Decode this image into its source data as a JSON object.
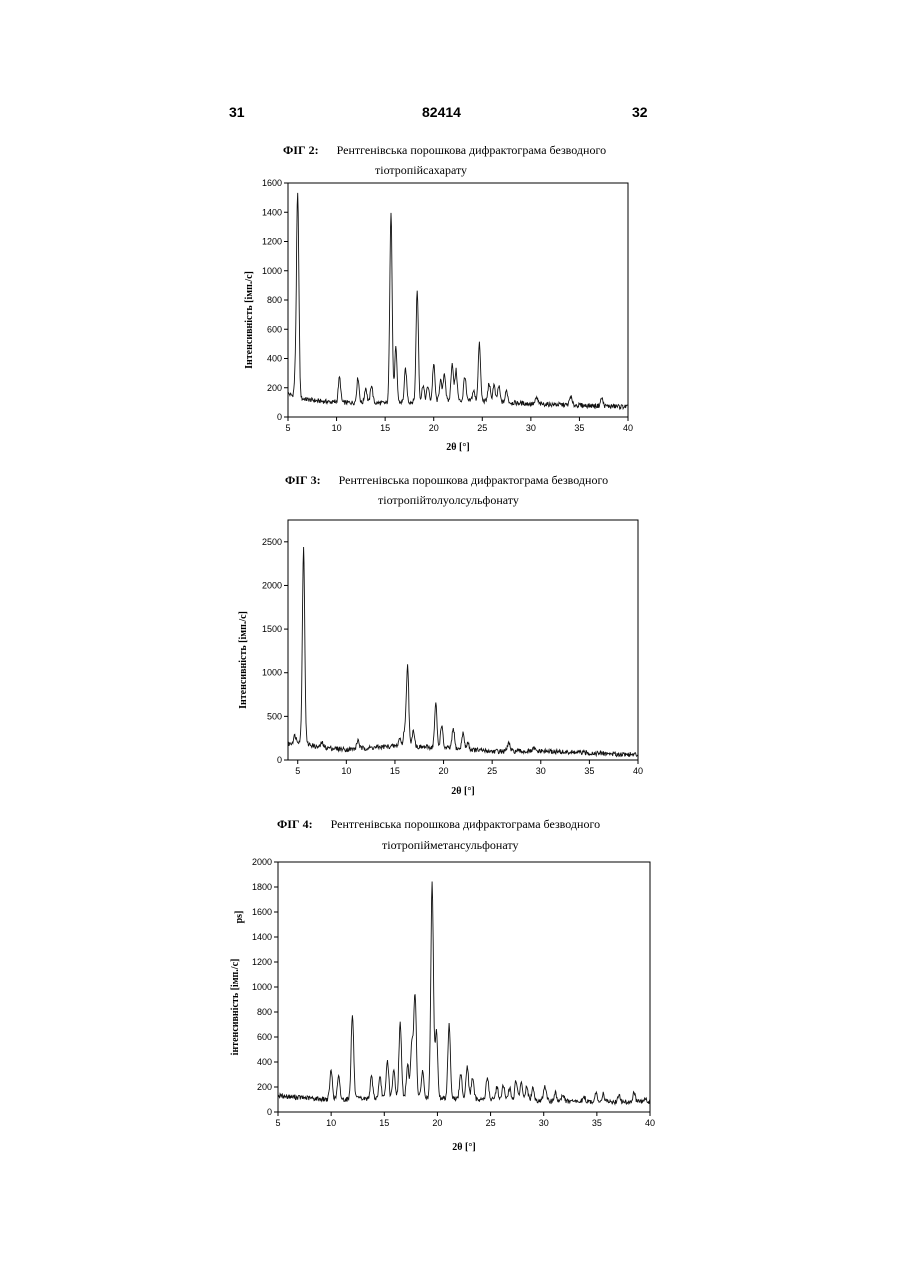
{
  "header": {
    "page_left": "31",
    "doc_number": "82414",
    "page_right": "32"
  },
  "chart_data": [
    {
      "type": "line",
      "figure": "ФІГ 2:",
      "caption_line1": "Рентгенівська порошкова дифрактограма безводного",
      "caption_line2": "тіотропійсахарату",
      "xlabel": "2θ [°]",
      "ylabel": "Інтенсивність [імп./с]",
      "xlim": [
        5,
        40
      ],
      "ylim": [
        0,
        1600
      ],
      "xticks": [
        5,
        10,
        15,
        20,
        25,
        30,
        35,
        40
      ],
      "yticks": [
        0,
        200,
        400,
        600,
        800,
        1000,
        1200,
        1400,
        1600
      ],
      "baseline": [
        [
          5,
          160
        ],
        [
          6,
          130
        ],
        [
          8,
          110
        ],
        [
          10,
          100
        ],
        [
          15,
          95
        ],
        [
          20,
          110
        ],
        [
          25,
          110
        ],
        [
          30,
          90
        ],
        [
          35,
          80
        ],
        [
          40,
          70
        ]
      ],
      "peaks": [
        [
          5.8,
          300
        ],
        [
          6.0,
          1480
        ],
        [
          10.3,
          270
        ],
        [
          12.2,
          270
        ],
        [
          13.0,
          200
        ],
        [
          13.6,
          220
        ],
        [
          15.6,
          1410
        ],
        [
          16.1,
          470
        ],
        [
          17.1,
          330
        ],
        [
          18.3,
          860
        ],
        [
          18.9,
          220
        ],
        [
          19.4,
          210
        ],
        [
          20.0,
          360
        ],
        [
          20.7,
          250
        ],
        [
          21.1,
          300
        ],
        [
          21.9,
          370
        ],
        [
          22.3,
          320
        ],
        [
          23.2,
          280
        ],
        [
          24.1,
          180
        ],
        [
          24.7,
          500
        ],
        [
          25.7,
          230
        ],
        [
          26.2,
          220
        ],
        [
          26.7,
          210
        ],
        [
          27.5,
          180
        ],
        [
          30.6,
          130
        ],
        [
          34.1,
          140
        ],
        [
          37.3,
          130
        ]
      ]
    },
    {
      "type": "line",
      "figure": "ФІГ 3:",
      "caption_line1": "Рентгенівська порошкова дифрактограма безводного",
      "caption_line2": "тіотропійтолуолсульфонату",
      "xlabel": "2θ [°]",
      "ylabel": "Інтенсивність [імп./с]",
      "xlim": [
        4,
        40
      ],
      "ylim": [
        0,
        2750
      ],
      "xticks": [
        5,
        10,
        15,
        20,
        25,
        30,
        35,
        40
      ],
      "ytick_values": [
        0,
        500,
        1000,
        1500,
        2000,
        2500
      ],
      "baseline": [
        [
          4,
          180
        ],
        [
          5,
          220
        ],
        [
          7,
          150
        ],
        [
          10,
          120
        ],
        [
          15,
          160
        ],
        [
          20,
          140
        ],
        [
          25,
          100
        ],
        [
          30,
          100
        ],
        [
          35,
          80
        ],
        [
          40,
          60
        ]
      ],
      "peaks": [
        [
          4.7,
          280
        ],
        [
          5.6,
          2460
        ],
        [
          7.5,
          200
        ],
        [
          11.2,
          230
        ],
        [
          15.5,
          250
        ],
        [
          16.0,
          350
        ],
        [
          16.3,
          1090
        ],
        [
          16.9,
          350
        ],
        [
          19.2,
          640
        ],
        [
          19.8,
          400
        ],
        [
          21.0,
          360
        ],
        [
          22.0,
          310
        ],
        [
          22.5,
          200
        ],
        [
          26.7,
          200
        ],
        [
          29.3,
          130
        ]
      ]
    },
    {
      "type": "line",
      "figure": "ФІГ 4:",
      "caption_line1": "Рентгенівська порошкова дифрактограма безводного",
      "caption_line2": "тіотропійметансульфонату",
      "xlabel": "2θ [°]",
      "ylabel": "інтенсивність [імп./с]",
      "ylabel_extra": "ps]",
      "xlim": [
        5,
        40
      ],
      "ylim": [
        0,
        2000
      ],
      "xticks": [
        5,
        10,
        15,
        20,
        25,
        30,
        35,
        40
      ],
      "ytick_values": [
        0,
        200,
        400,
        600,
        800,
        1000,
        1200,
        1400,
        1600,
        1800,
        2000
      ],
      "baseline": [
        [
          5,
          130
        ],
        [
          8,
          110
        ],
        [
          10,
          100
        ],
        [
          15,
          110
        ],
        [
          20,
          110
        ],
        [
          25,
          100
        ],
        [
          30,
          90
        ],
        [
          35,
          80
        ],
        [
          40,
          80
        ]
      ],
      "peaks": [
        [
          10.0,
          330
        ],
        [
          10.7,
          280
        ],
        [
          12.0,
          780
        ],
        [
          13.8,
          280
        ],
        [
          14.6,
          270
        ],
        [
          15.3,
          410
        ],
        [
          15.9,
          330
        ],
        [
          16.5,
          710
        ],
        [
          17.2,
          380
        ],
        [
          17.6,
          550
        ],
        [
          17.9,
          930
        ],
        [
          18.6,
          330
        ],
        [
          19.5,
          1830
        ],
        [
          19.9,
          650
        ],
        [
          21.1,
          700
        ],
        [
          22.2,
          300
        ],
        [
          22.8,
          370
        ],
        [
          23.3,
          270
        ],
        [
          24.7,
          280
        ],
        [
          25.6,
          200
        ],
        [
          26.2,
          210
        ],
        [
          26.8,
          190
        ],
        [
          27.4,
          250
        ],
        [
          27.9,
          230
        ],
        [
          28.4,
          200
        ],
        [
          29.0,
          190
        ],
        [
          30.1,
          210
        ],
        [
          31.1,
          150
        ],
        [
          31.8,
          140
        ],
        [
          33.8,
          120
        ],
        [
          34.9,
          150
        ],
        [
          35.6,
          150
        ],
        [
          37.1,
          130
        ],
        [
          38.5,
          150
        ],
        [
          39.5,
          110
        ]
      ]
    }
  ]
}
